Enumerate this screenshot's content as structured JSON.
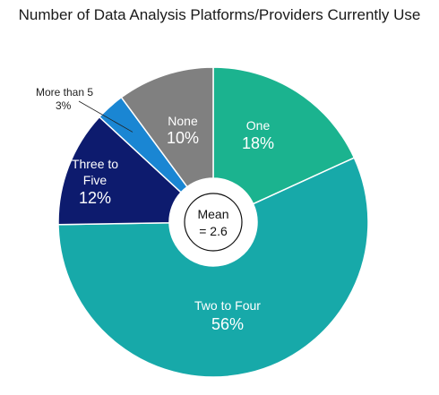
{
  "chart_data": {
    "type": "pie",
    "title": "Number of Data Analysis Platforms/Providers Currently Use",
    "categories": [
      "One",
      "Two to Four",
      "Three to Five",
      "More than 5",
      "None"
    ],
    "values": [
      18,
      56,
      12,
      3,
      10
    ],
    "value_labels": [
      "18%",
      "56%",
      "12%",
      "3%",
      "10%"
    ],
    "colors": [
      "#1bb38f",
      "#17a9a9",
      "#0d1b6e",
      "#1a86d3",
      "#808080"
    ],
    "center_label": [
      "Mean",
      "= 2.6"
    ],
    "label_lines": {
      "three_to_five": [
        "Three to",
        "Five"
      ],
      "more_than_5": "More than 5"
    },
    "start_position": "12 o'clock, clockwise",
    "legend": "none"
  }
}
